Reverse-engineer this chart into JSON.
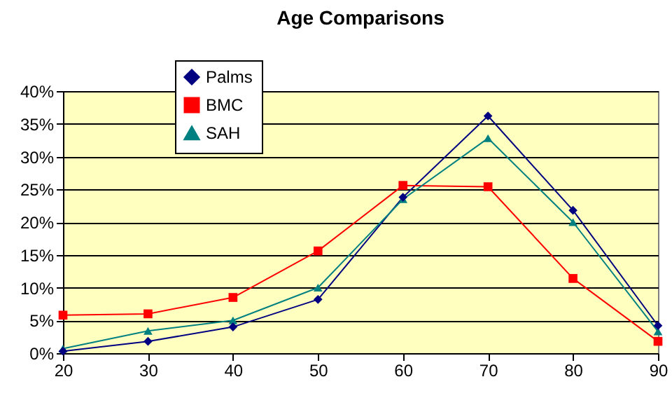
{
  "chart_data": {
    "type": "line",
    "title": "Age Comparisons",
    "x": [
      20,
      30,
      40,
      50,
      60,
      70,
      80,
      90
    ],
    "series": [
      {
        "name": "Palms",
        "color": "#000080",
        "marker": "diamond",
        "values": [
          0.3,
          1.8,
          4.0,
          8.2,
          23.8,
          36.2,
          21.8,
          4.2
        ]
      },
      {
        "name": "BMC",
        "color": "#ff0000",
        "marker": "square",
        "values": [
          5.8,
          6.0,
          8.5,
          15.6,
          25.6,
          25.4,
          11.4,
          1.8
        ]
      },
      {
        "name": "SAH",
        "color": "#008080",
        "marker": "triangle",
        "values": [
          0.7,
          3.4,
          5.0,
          10.0,
          23.5,
          32.8,
          20.0,
          3.3
        ]
      }
    ],
    "xlim": [
      20,
      90
    ],
    "xticks": [
      20,
      30,
      40,
      50,
      60,
      70,
      80,
      90
    ],
    "ylim": [
      0,
      40
    ],
    "yticks": [
      {
        "value": 0,
        "label": "0%"
      },
      {
        "value": 5,
        "label": "5%"
      },
      {
        "value": 10,
        "label": "10%"
      },
      {
        "value": 15,
        "label": "15%"
      },
      {
        "value": 20,
        "label": "20%"
      },
      {
        "value": 25,
        "label": "25%"
      },
      {
        "value": 30,
        "label": "30%"
      },
      {
        "value": 35,
        "label": "35%"
      },
      {
        "value": 40,
        "label": "40%"
      }
    ],
    "grid": "y",
    "legend": "top left"
  }
}
